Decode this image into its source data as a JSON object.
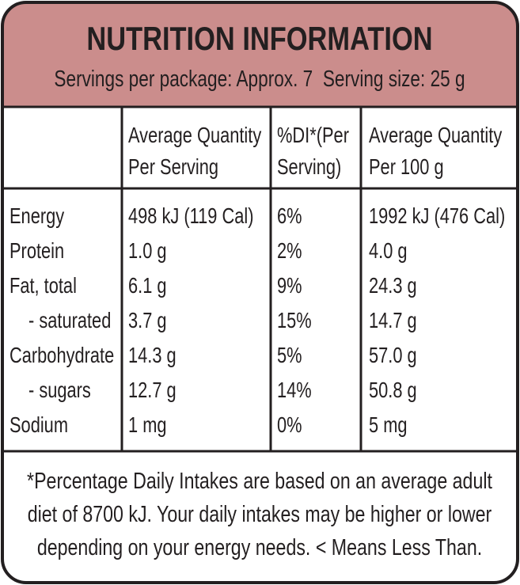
{
  "header": {
    "title": "NUTRITION INFORMATION",
    "subtitle": "Servings per package: Approx. 7  Serving size: 25 g"
  },
  "table": {
    "columns": [
      [
        "Average Quantity",
        "Per Serving"
      ],
      [
        "%DI*(Per",
        "Serving)"
      ],
      [
        "Average Quantity",
        "Per 100 g"
      ]
    ],
    "rows": [
      [
        "Energy",
        "498 kJ (119 Cal)",
        "6%",
        "1992 kJ (476 Cal)"
      ],
      [
        "Protein",
        "1.0 g",
        "2%",
        "4.0 g"
      ],
      [
        "Fat, total",
        "6.1 g",
        "9%",
        "24.3 g"
      ],
      [
        "- saturated",
        "3.7 g",
        "15%",
        "14.7 g"
      ],
      [
        "Carbohydrate",
        "14.3 g",
        "5%",
        "57.0 g"
      ],
      [
        "- sugars",
        "12.7 g",
        "14%",
        "50.8 g"
      ],
      [
        "Sodium",
        "1 mg",
        "0%",
        "5 mg"
      ]
    ]
  },
  "footnote": [
    "*Percentage Daily Intakes are based on an average adult",
    "diet of 8700 kJ. Your daily intakes may be higher or lower",
    "depending on your energy needs. < Means Less Than."
  ]
}
